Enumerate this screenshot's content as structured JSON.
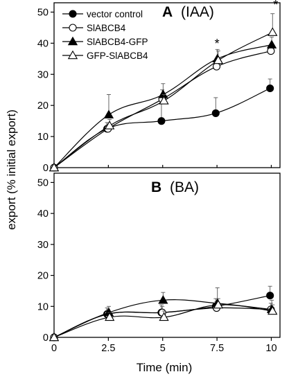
{
  "chart_data": [
    {
      "type": "line",
      "panel": "A",
      "title_letter": "A",
      "title_text": "(IAA)",
      "x": [
        0,
        2.5,
        5,
        7.5,
        10
      ],
      "xlim": [
        0,
        10.4
      ],
      "ylim": [
        0,
        53
      ],
      "yticks": [
        0,
        10,
        20,
        30,
        40,
        50
      ],
      "series": [
        {
          "name": "vector control",
          "marker": "filled-circle",
          "values": [
            0,
            12.5,
            15,
            17.5,
            25.5
          ],
          "errors": [
            0,
            2,
            6.5,
            5,
            3
          ]
        },
        {
          "name": "SlABCB4",
          "marker": "open-circle",
          "values": [
            0,
            12.5,
            22,
            32.5,
            37.5
          ],
          "errors": [
            0,
            1.5,
            3,
            2.5,
            2
          ]
        },
        {
          "name": "SlABCB4-GFP",
          "marker": "filled-triangle",
          "values": [
            0,
            17,
            23.5,
            35,
            39.5
          ],
          "errors": [
            0,
            6.5,
            3.5,
            3,
            2.5
          ]
        },
        {
          "name": "GFP-SlABCB4",
          "marker": "open-triangle",
          "values": [
            0,
            13.5,
            21.5,
            34.5,
            43.5
          ],
          "errors": [
            0,
            2,
            2,
            3,
            6
          ]
        }
      ],
      "annotations": [
        {
          "text": "*",
          "x": 7.5,
          "y": 38.5
        },
        {
          "text": "*",
          "x": 10.2,
          "y": 51
        }
      ]
    },
    {
      "type": "line",
      "panel": "B",
      "title_letter": "B",
      "title_text": "(BA)",
      "x": [
        0,
        2.5,
        5,
        7.5,
        10
      ],
      "xlim": [
        0,
        10.4
      ],
      "ylim": [
        0,
        53
      ],
      "yticks": [
        0,
        10,
        20,
        30,
        40,
        50
      ],
      "xticks": [
        "0",
        "2.5",
        "5",
        "7.5",
        "10"
      ],
      "series": [
        {
          "name": "vector control",
          "marker": "filled-circle",
          "values": [
            0,
            7.5,
            8,
            10,
            13.5
          ],
          "errors": [
            0,
            2,
            2.5,
            2.5,
            3
          ]
        },
        {
          "name": "SlABCB4",
          "marker": "open-circle",
          "values": [
            0,
            7.5,
            8,
            9.5,
            9
          ],
          "errors": [
            0,
            1.5,
            2,
            2,
            2
          ]
        },
        {
          "name": "SlABCB4-GFP",
          "marker": "filled-triangle",
          "values": [
            0,
            8,
            12,
            11,
            9
          ],
          "errors": [
            0,
            2,
            2.5,
            5,
            3
          ]
        },
        {
          "name": "GFP-SlABCB4",
          "marker": "open-triangle",
          "values": [
            0,
            6.5,
            6.5,
            10.5,
            8.5
          ],
          "errors": [
            0,
            1.5,
            2,
            2,
            2
          ]
        }
      ]
    }
  ],
  "axes": {
    "ylabel": "export (% initial export)",
    "xlabel": "Time (min)"
  },
  "legend": {
    "placement": "top-left of panel A",
    "entries": [
      "vector control",
      "SlABCB4",
      "SlABCB4-GFP",
      "GFP-SlABCB4"
    ]
  },
  "colors": {
    "lines": "#000000",
    "background": "#ffffff",
    "error_bars": "#555555"
  }
}
